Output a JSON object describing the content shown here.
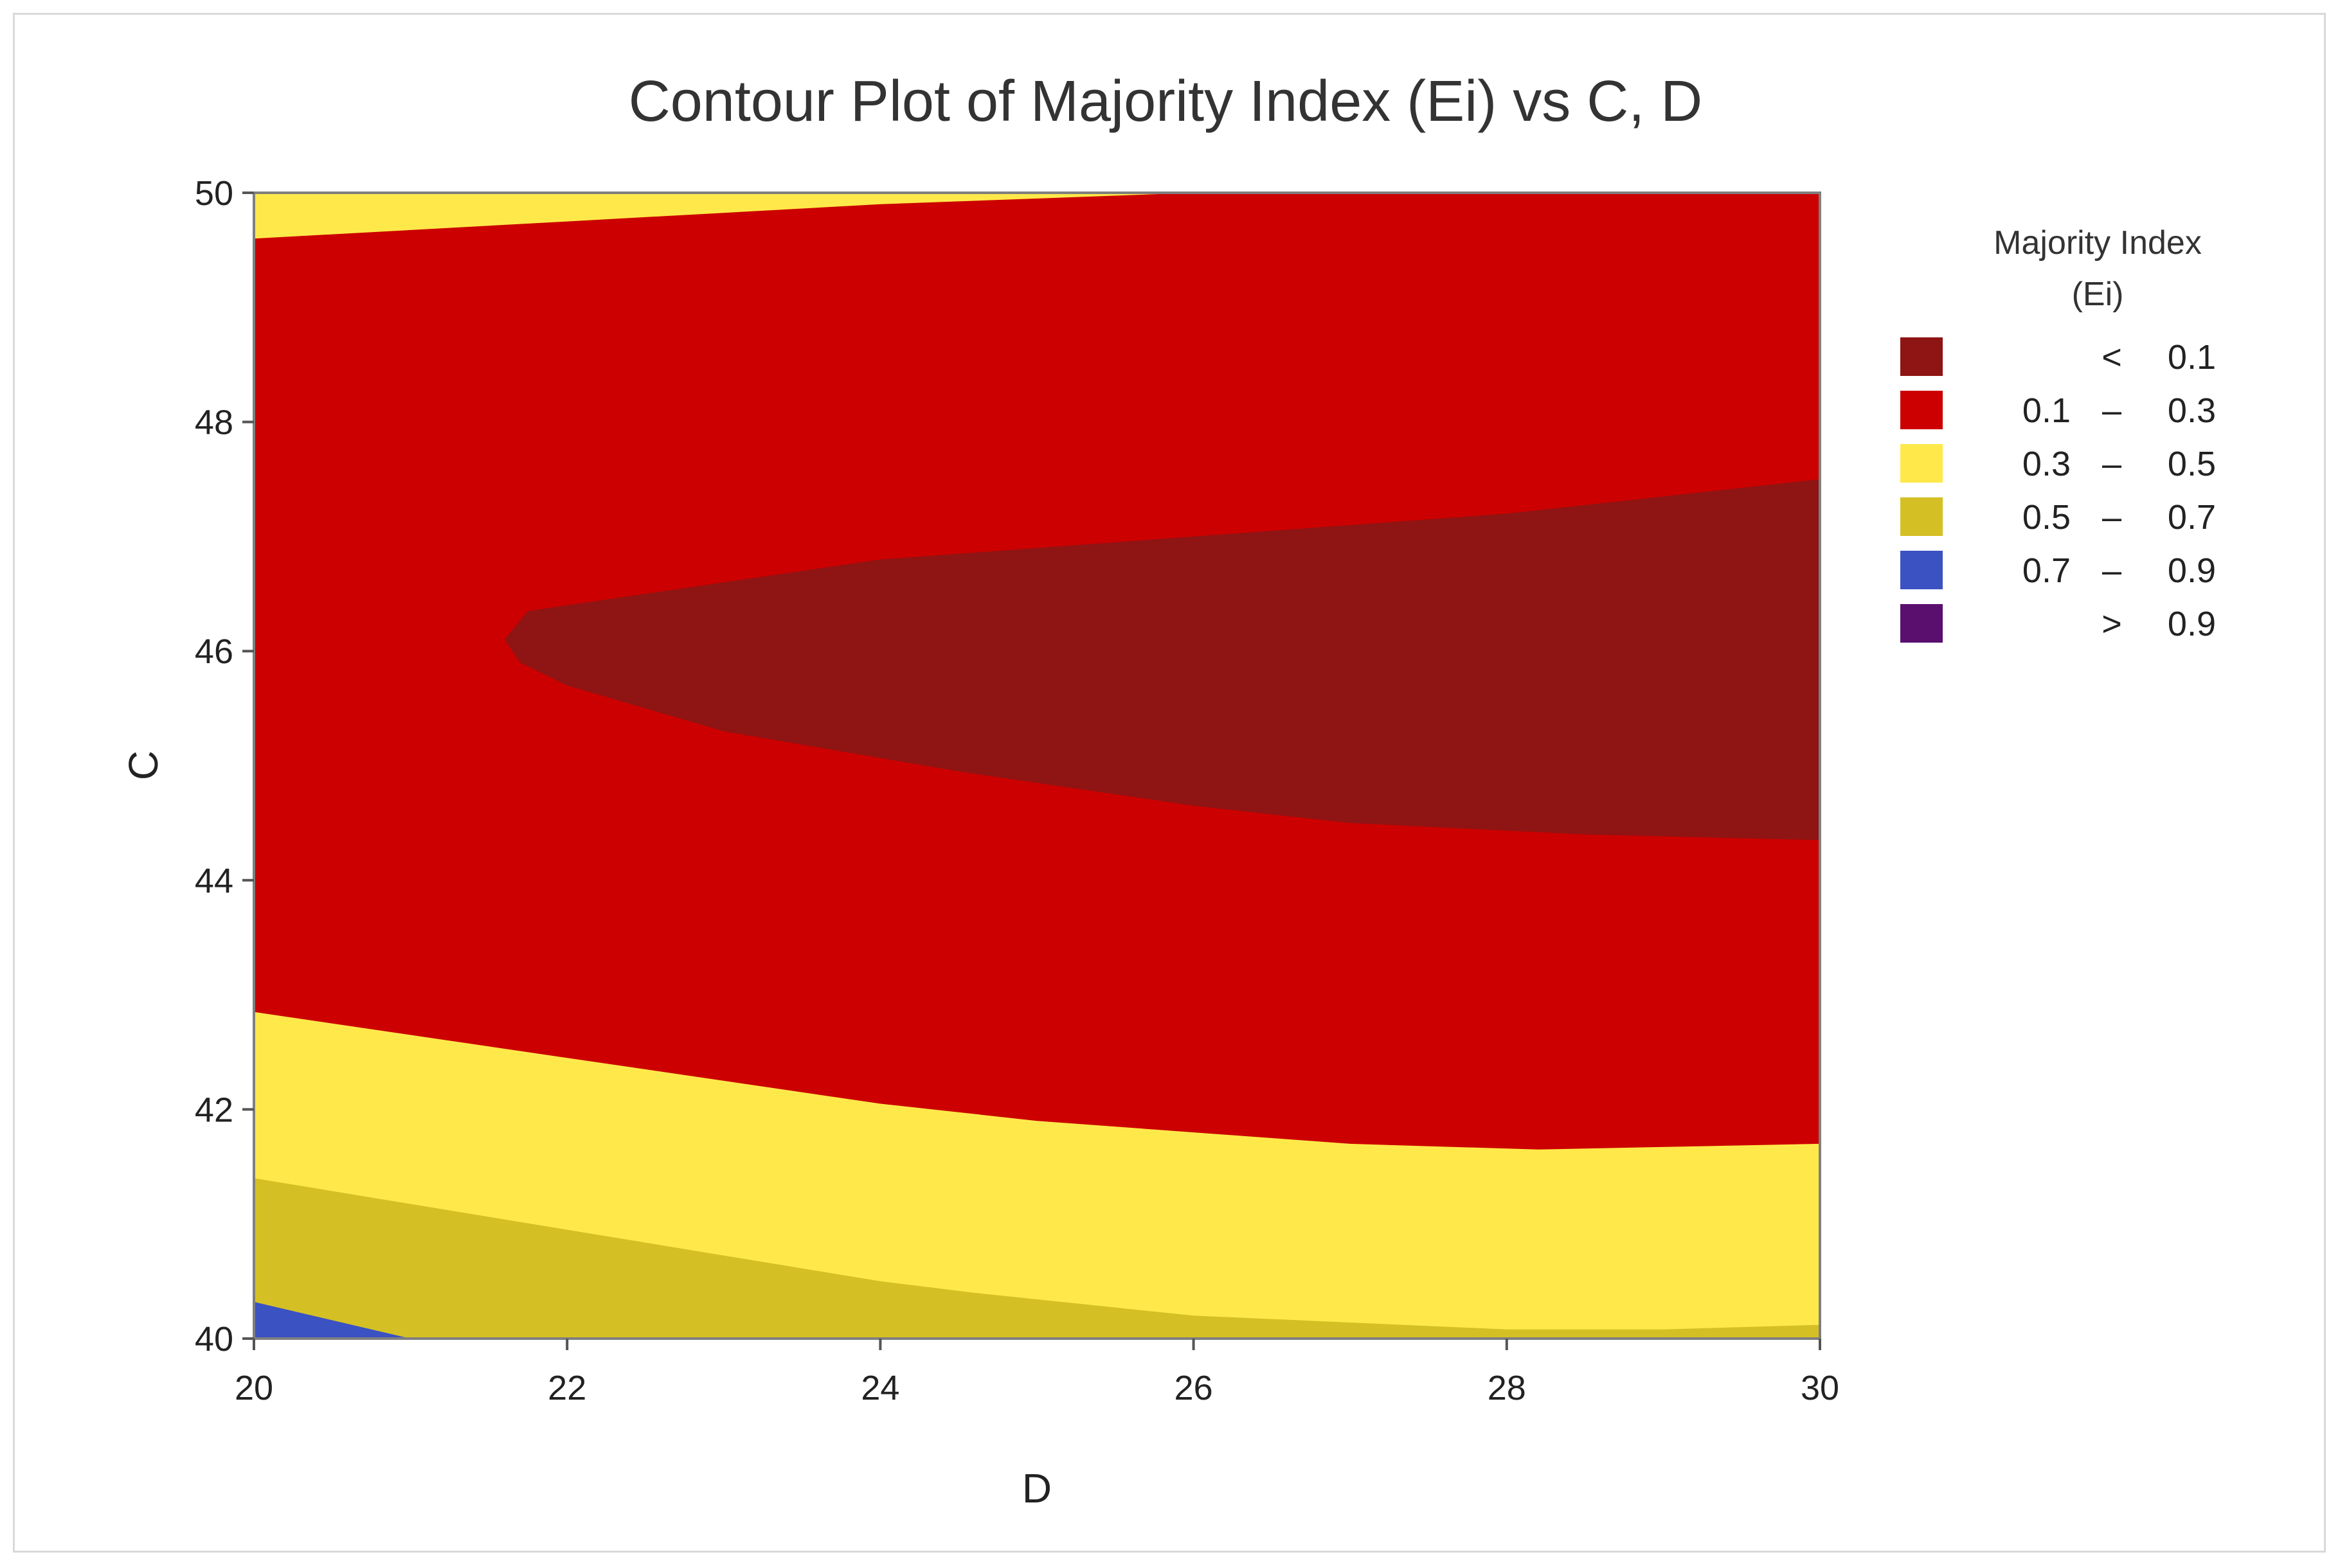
{
  "chart_data": {
    "type": "contour",
    "title": "Contour Plot of Majority Index (Ei) vs C, D",
    "xlabel": "D",
    "ylabel": "C",
    "xlim": [
      20,
      30
    ],
    "ylim": [
      40,
      50
    ],
    "xticks": [
      "20",
      "22",
      "24",
      "26",
      "28",
      "30"
    ],
    "yticks": [
      "40",
      "42",
      "44",
      "46",
      "48",
      "50"
    ],
    "legend": {
      "title_lines": [
        "Majority Index",
        "(Ei)"
      ],
      "placement": "right",
      "entries": [
        {
          "low": "",
          "sep": "<",
          "high": "0.1",
          "color": "#8f1414"
        },
        {
          "low": "0.1",
          "sep": "–",
          "high": "0.3",
          "color": "#cc0000"
        },
        {
          "low": "0.3",
          "sep": "–",
          "high": "0.5",
          "color": "#ffe94a"
        },
        {
          "low": "0.5",
          "sep": "–",
          "high": "0.7",
          "color": "#d4c024"
        },
        {
          "low": "0.7",
          "sep": "–",
          "high": "0.9",
          "color": "#3b52c2"
        },
        {
          "low": "",
          "sep": ">",
          "high": "0.9",
          "color": "#5a0f6e"
        }
      ]
    },
    "bands": [
      {
        "range": "0.3 – 0.5",
        "color": "#ffe94a",
        "boundary": [
          [
            20,
            50
          ],
          [
            30,
            50
          ],
          [
            28,
            50
          ],
          [
            26,
            50
          ],
          [
            24,
            49.9
          ],
          [
            22,
            49.75
          ],
          [
            20,
            49.6
          ]
        ]
      },
      {
        "range": "0.1 – 0.3",
        "color": "#cc0000",
        "boundary": [
          [
            20,
            49.6
          ],
          [
            22,
            49.75
          ],
          [
            24,
            49.9
          ],
          [
            26,
            50
          ],
          [
            28,
            50
          ],
          [
            30,
            50
          ],
          [
            30,
            41.7
          ],
          [
            28.2,
            41.65
          ],
          [
            27,
            41.7
          ],
          [
            26,
            41.8
          ],
          [
            25,
            41.9
          ],
          [
            24,
            42.05
          ],
          [
            22,
            42.45
          ],
          [
            20,
            42.85
          ]
        ]
      },
      {
        "range": "< 0.1",
        "color": "#8f1414",
        "boundary": [
          [
            21.6,
            46.1
          ],
          [
            21.75,
            46.35
          ],
          [
            22.5,
            46.5
          ],
          [
            24,
            46.8
          ],
          [
            26,
            47
          ],
          [
            28,
            47.2
          ],
          [
            30,
            47.5
          ],
          [
            30,
            44.35
          ],
          [
            28.5,
            44.4
          ],
          [
            27,
            44.5
          ],
          [
            26,
            44.65
          ],
          [
            24.5,
            44.95
          ],
          [
            23,
            45.3
          ],
          [
            22,
            45.7
          ],
          [
            21.7,
            45.9
          ]
        ]
      },
      {
        "range": "0.5 – 0.7",
        "color": "#d4c024",
        "boundary": [
          [
            20,
            41.4
          ],
          [
            22,
            40.95
          ],
          [
            24,
            40.5
          ],
          [
            24.6,
            40.4
          ],
          [
            26,
            40.2
          ],
          [
            28,
            40.08
          ],
          [
            29,
            40.08
          ],
          [
            30,
            40.12
          ],
          [
            30,
            40
          ],
          [
            21,
            40
          ],
          [
            20,
            40.3
          ]
        ]
      },
      {
        "range": "0.7 – 0.9",
        "color": "#3b52c2",
        "boundary": [
          [
            20,
            40.32
          ],
          [
            21,
            40
          ],
          [
            20,
            40
          ]
        ]
      }
    ]
  }
}
